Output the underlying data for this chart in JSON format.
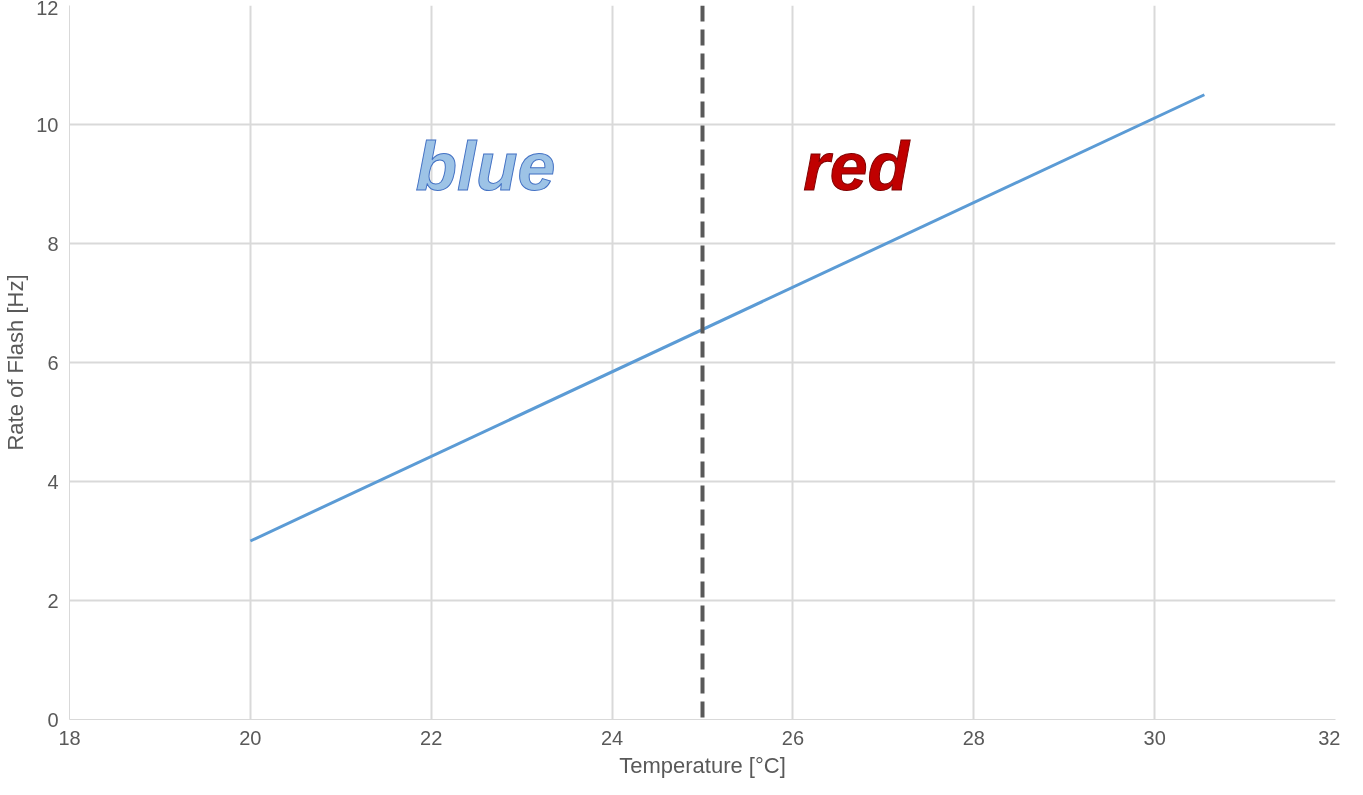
{
  "chart_data": {
    "type": "line",
    "xlabel": "Temperature [°C]",
    "ylabel": "Rate of Flash [Hz]",
    "series": [
      {
        "color": "#5b9bd5",
        "x": [
          20,
          30.55
        ],
        "values": [
          3,
          10.5
        ]
      }
    ],
    "xlim": [
      18,
      32
    ],
    "xticks": [
      18,
      20,
      22,
      24,
      26,
      28,
      30,
      32
    ],
    "ylim": [
      0,
      12
    ],
    "yticks": [
      0,
      2,
      4,
      6,
      8,
      10,
      12
    ],
    "grid": true,
    "marker": "none",
    "line_style": "solid",
    "ref_lines": [
      {
        "axis": "x",
        "value": 25,
        "color": "#595959",
        "line_style": "dashed"
      }
    ],
    "annotations": [
      "blue",
      "red"
    ]
  }
}
